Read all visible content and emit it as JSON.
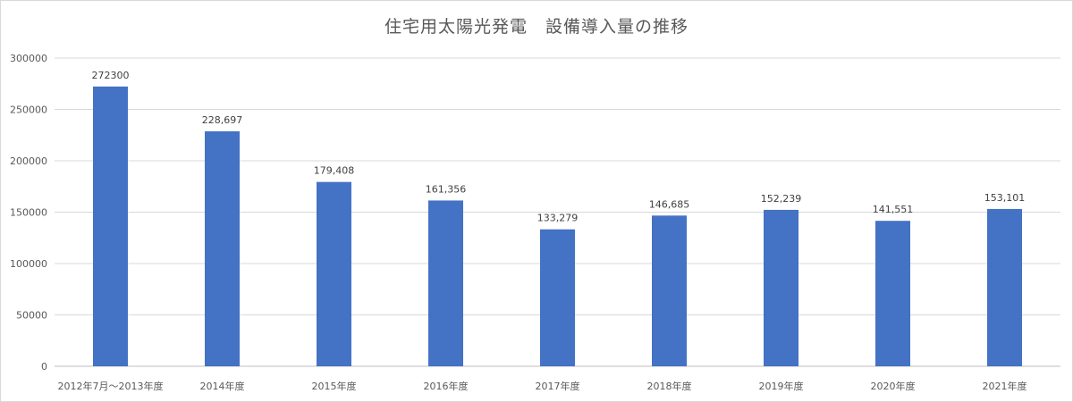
{
  "chart_data": {
    "type": "bar",
    "title": "住宅用太陽光発電　設備導入量の推移",
    "xlabel": "",
    "ylabel": "",
    "ylim": [
      0,
      300000
    ],
    "yticks": [
      "0",
      "50000",
      "100000",
      "150000",
      "200000",
      "250000",
      "300000"
    ],
    "grid": true,
    "legend": "none",
    "bar_color": "#4472c4",
    "categories": [
      "2012年7月～2013年度",
      "2014年度",
      "2015年度",
      "2016年度",
      "2017年度",
      "2018年度",
      "2019年度",
      "2020年度",
      "2021年度"
    ],
    "values": [
      272300,
      228697,
      179408,
      161356,
      133279,
      146685,
      152239,
      141551,
      153101
    ],
    "data_labels": [
      "272300",
      "228,697",
      "179,408",
      "161,356",
      "133,279",
      "146,685",
      "152,239",
      "141,551",
      "153,101"
    ]
  }
}
